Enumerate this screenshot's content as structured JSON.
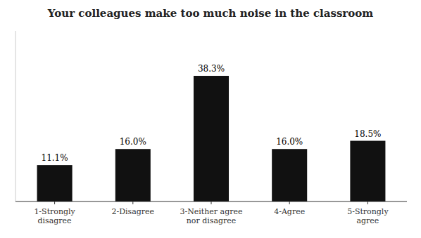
{
  "chart_data": {
    "type": "bar",
    "title": "Your colleagues make too much noise in the classroom",
    "categories": [
      "1-Strongly\ndisagree",
      "2-Disagree",
      "3-Neither agree\nnor disagree",
      "4-Agree",
      "5-Strongly\nagree"
    ],
    "values": [
      11.1,
      16.0,
      38.3,
      16.0,
      18.5
    ],
    "value_labels": [
      "11.1%",
      "16.0%",
      "38.3%",
      "16.0%",
      "18.5%"
    ],
    "color": "#111111",
    "ylim": [
      0,
      52
    ],
    "data_labels": true,
    "tick_labels": "x",
    "grid": false
  }
}
